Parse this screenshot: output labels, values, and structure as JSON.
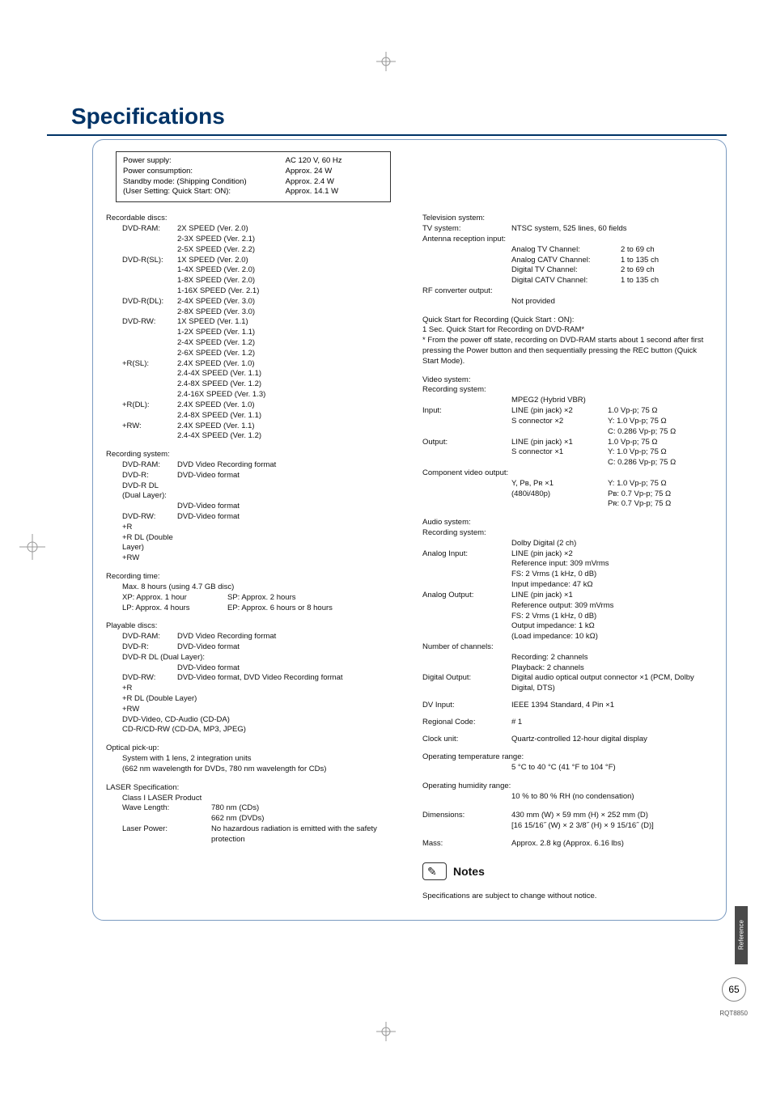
{
  "title": "Specifications",
  "power_box": {
    "rows": [
      {
        "label": "Power supply:",
        "value": "AC 120 V, 60 Hz"
      },
      {
        "label": "Power consumption:",
        "value": "Approx. 24 W"
      },
      {
        "label": "Standby mode: (Shipping Condition)",
        "value": "Approx. 2.4 W"
      },
      {
        "label": "  (User Setting: Quick Start: ON):",
        "value": "Approx. 14.1 W"
      }
    ]
  },
  "recordable": {
    "header": "Recordable discs:",
    "items": [
      {
        "key": "DVD-RAM:",
        "lines": [
          "2X SPEED (Ver. 2.0)",
          "2-3X SPEED (Ver. 2.1)",
          "2-5X SPEED (Ver. 2.2)"
        ]
      },
      {
        "key": "DVD-R(SL):",
        "lines": [
          "1X SPEED (Ver. 2.0)",
          "1-4X SPEED (Ver. 2.0)",
          "1-8X SPEED (Ver. 2.0)",
          "1-16X SPEED (Ver. 2.1)"
        ]
      },
      {
        "key": "DVD-R(DL):",
        "lines": [
          "2-4X SPEED (Ver. 3.0)",
          "2-8X SPEED (Ver. 3.0)"
        ]
      },
      {
        "key": "DVD-RW:",
        "lines": [
          "1X SPEED (Ver. 1.1)",
          "1-2X SPEED (Ver. 1.1)",
          "2-4X SPEED (Ver. 1.2)",
          "2-6X SPEED (Ver. 1.2)"
        ]
      },
      {
        "key": "+R(SL):",
        "lines": [
          "2.4X SPEED (Ver. 1.0)",
          "2.4-4X SPEED (Ver. 1.1)",
          "2.4-8X SPEED (Ver. 1.2)",
          "2.4-16X SPEED (Ver. 1.3)"
        ]
      },
      {
        "key": "+R(DL):",
        "lines": [
          "2.4X SPEED (Ver. 1.0)",
          "2.4-8X SPEED (Ver. 1.1)"
        ]
      },
      {
        "key": "+RW:",
        "lines": [
          "2.4X SPEED (Ver. 1.1)",
          "2.4-4X SPEED (Ver. 1.2)"
        ]
      }
    ]
  },
  "recording_system": {
    "header": "Recording system:",
    "items": [
      {
        "key": "DVD-RAM:",
        "val": "DVD Video Recording format"
      },
      {
        "key": "DVD-R:",
        "val": "DVD-Video format"
      },
      {
        "key": "DVD-R DL (Dual Layer):",
        "val": ""
      },
      {
        "key": "",
        "val": "DVD-Video format"
      },
      {
        "key": "DVD-RW:",
        "val": "DVD-Video format"
      },
      {
        "key": "+R",
        "val": ""
      },
      {
        "key": "+R DL (Double Layer)",
        "val": ""
      },
      {
        "key": "+RW",
        "val": ""
      }
    ]
  },
  "recording_time": {
    "header": "Recording time:",
    "sub": "Max. 8 hours (using 4.7 GB disc)",
    "rows": [
      {
        "l": "XP: Approx. 1 hour",
        "r": "SP: Approx. 2 hours"
      },
      {
        "l": "LP: Approx. 4 hours",
        "r": "EP: Approx. 6 hours or 8 hours"
      }
    ]
  },
  "playable": {
    "header": "Playable discs:",
    "items": [
      {
        "key": "DVD-RAM:",
        "val": "DVD Video Recording format"
      },
      {
        "key": "DVD-R:",
        "val": "DVD-Video format"
      },
      {
        "key": "DVD-R DL (Dual Layer):",
        "val": ""
      },
      {
        "key": "",
        "val": "DVD-Video format"
      },
      {
        "key": "DVD-RW:",
        "val": "DVD-Video format, DVD Video Recording format"
      },
      {
        "key": "+R",
        "val": ""
      },
      {
        "key": "+R DL (Double Layer)",
        "val": ""
      },
      {
        "key": "+RW",
        "val": ""
      },
      {
        "key": "DVD-Video, CD-Audio (CD-DA)",
        "val": ""
      },
      {
        "key": "CD-R/CD-RW (CD-DA, MP3, JPEG)",
        "val": ""
      }
    ]
  },
  "optical": {
    "header": "Optical pick-up:",
    "l1": "System with 1 lens, 2 integration units",
    "l2": "(662 nm wavelength for DVDs, 780 nm wavelength for CDs)"
  },
  "laser": {
    "header": "LASER Specification:",
    "class": "Class I LASER Product",
    "wave_k": "Wave Length:",
    "wave_v1": "780 nm (CDs)",
    "wave_v2": "662 nm (DVDs)",
    "power_k": "Laser Power:",
    "power_v": "No hazardous radiation is emitted with the safety protection"
  },
  "tv": {
    "header": "Television system:",
    "sys_k": "TV system:",
    "sys_v": "NTSC system, 525 lines, 60 fields",
    "ant": "Antenna reception input:",
    "rows": [
      {
        "l": "Analog TV Channel:",
        "r": "2 to 69 ch"
      },
      {
        "l": "Analog CATV Channel:",
        "r": "1 to 135 ch"
      },
      {
        "l": "Digital TV Channel:",
        "r": "2 to 69 ch"
      },
      {
        "l": "Digital CATV Channel:",
        "r": "1 to 135 ch"
      }
    ],
    "rf_k": "RF converter output:",
    "rf_v": "Not provided"
  },
  "quick": {
    "l1": "Quick Start for Recording (Quick Start : ON):",
    "l2": "1 Sec. Quick Start for Recording on DVD-RAM*",
    "l3": "* From the power off state, recording on DVD-RAM starts about 1 second after first pressing the Power button and then sequentially pressing the REC button (Quick Start Mode)."
  },
  "video": {
    "header": "Video system:",
    "rec": "Recording system:",
    "rec_v": "MPEG2 (Hybrid VBR)",
    "in_k": "Input:",
    "in_rows": [
      {
        "a": "LINE (pin jack) ×2",
        "b": "",
        "c": "1.0 Vp-p; 75 Ω"
      },
      {
        "a": "S connector ×2",
        "b": "Y:",
        "c": "1.0 Vp-p; 75 Ω"
      },
      {
        "a": "",
        "b": "C:",
        "c": "0.286 Vp-p; 75 Ω"
      }
    ],
    "out_k": "Output:",
    "out_rows": [
      {
        "a": "LINE (pin jack) ×1",
        "b": "",
        "c": "1.0 Vp-p; 75 Ω"
      },
      {
        "a": "S connector ×1",
        "b": "Y:",
        "c": "1.0 Vp-p; 75 Ω"
      },
      {
        "a": "",
        "b": "C:",
        "c": "0.286 Vp-p; 75 Ω"
      }
    ],
    "comp_k": "Component video output:",
    "comp_rows": [
      {
        "a": "Y, Pʙ, Pʀ ×1",
        "b": "Y:",
        "c": "1.0 Vp-p; 75 Ω"
      },
      {
        "a": "(480i/480p)",
        "b": "Pʙ:",
        "c": "0.7 Vp-p; 75 Ω"
      },
      {
        "a": "",
        "b": "Pʀ:",
        "c": "0.7 Vp-p; 75 Ω"
      }
    ]
  },
  "audio": {
    "header": "Audio system:",
    "rec": "Recording system:",
    "rec_v": "Dolby Digital (2 ch)",
    "ain_k": "Analog Input:",
    "ain_rows": [
      "LINE (pin jack) ×2",
      "Reference input: 309 mVrms",
      "FS: 2 Vrms (1 kHz, 0 dB)",
      "Input impedance: 47 kΩ"
    ],
    "aout_k": "Analog Output:",
    "aout_rows": [
      "LINE (pin jack) ×1",
      "Reference output: 309 mVrms",
      "FS: 2 Vrms (1 kHz, 0 dB)",
      "Output impedance: 1 kΩ",
      "(Load impedance: 10 kΩ)"
    ],
    "ch_k": "Number of channels:",
    "ch_rows": [
      "Recording: 2 channels",
      "Playback: 2 channels"
    ],
    "dig_k": "Digital Output:",
    "dig_v": "Digital audio optical output connector ×1 (PCM, Dolby Digital, DTS)"
  },
  "misc": [
    {
      "k": "DV Input:",
      "v": "IEEE 1394 Standard, 4 Pin ×1"
    },
    {
      "k": "Regional Code:",
      "v": "# 1"
    },
    {
      "k": "Clock unit:",
      "v": "Quartz-controlled 12-hour digital display"
    }
  ],
  "temp": {
    "k": "Operating temperature range:",
    "v": "5 °C to 40 °C (41 °F to 104 °F)"
  },
  "humid": {
    "k": "Operating humidity range:",
    "v": "10 % to 80 % RH (no condensation)"
  },
  "dim": {
    "k": "Dimensions:",
    "v1": "430 mm (W) × 59 mm (H) × 252 mm (D)",
    "v2": "[16 15/16˝ (W) × 2 3/8˝ (H) × 9 15/16˝ (D)]"
  },
  "mass": {
    "k": "Mass:",
    "v": "Approx. 2.8 kg (Approx. 6.16 lbs)"
  },
  "notes_label": "Notes",
  "change_notice": "Specifications are subject to change without notice.",
  "side_tab": "Reference",
  "page_num": "65",
  "rqt": "RQT8850"
}
